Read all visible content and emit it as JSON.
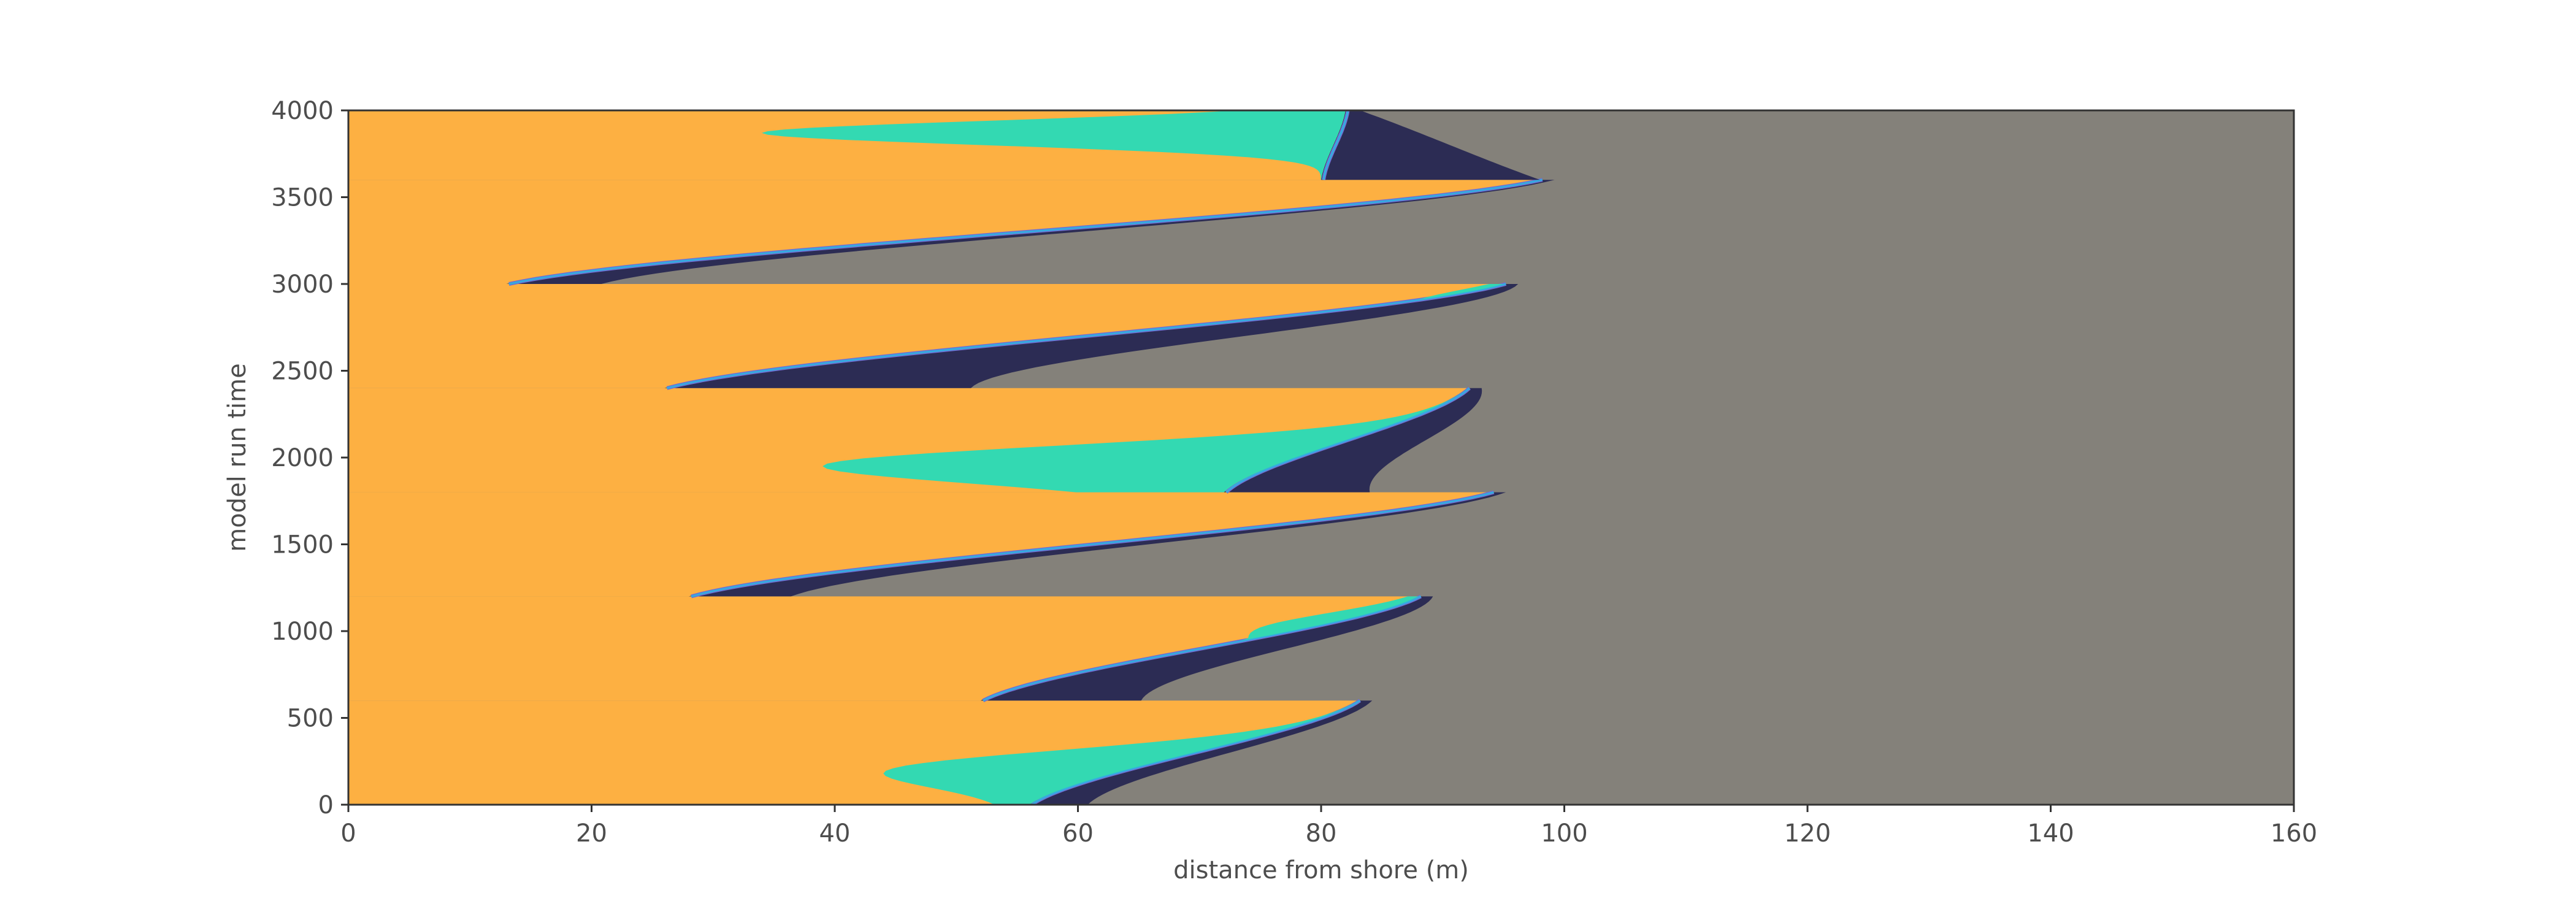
{
  "chart_data": {
    "type": "heatmap",
    "title": "",
    "xlabel": "distance from shore (m)",
    "ylabel": "model run time",
    "xlim": [
      0,
      160
    ],
    "ylim": [
      0,
      4000
    ],
    "xticks": [
      "0",
      "20",
      "40",
      "60",
      "80",
      "100",
      "120",
      "140",
      "160"
    ],
    "yticks": [
      "0",
      "500",
      "1000",
      "1500",
      "2000",
      "2500",
      "3000",
      "3500",
      "4000"
    ],
    "grid": false,
    "legend": "none",
    "colors": {
      "background": "#fdb042",
      "deep": "#84817a",
      "teal": "#33d9b2",
      "navy": "#2c2c54",
      "purple": "#706fd3",
      "blue": "#34ace0"
    },
    "cycles": [
      {
        "t0": 0,
        "t1": 600,
        "front_start": 56,
        "front_end": 83,
        "teal_from": 44,
        "teal_to": 54,
        "navy_from": 50,
        "navy_to": 56
      },
      {
        "t0": 600,
        "t1": 1200,
        "front_start": 52,
        "front_end": 88,
        "teal_from": 74,
        "teal_to": 86,
        "teal_bulge_time": 950,
        "navy_from": 52,
        "navy_to": 72
      },
      {
        "t0": 1200,
        "t1": 1800,
        "front_start": 28,
        "front_end": 94,
        "navy_from": 30,
        "navy_to": 42
      },
      {
        "t0": 1800,
        "t1": 2400,
        "front_start": 72,
        "front_end": 92,
        "teal_from": 39,
        "teal_to": 60,
        "teal_bulge_time": 1950,
        "navy_from": 54,
        "navy_to": 72
      },
      {
        "t0": 2400,
        "t1": 3000,
        "front_start": 26,
        "front_end": 95,
        "teal_from": 88,
        "teal_to": 94,
        "teal_bulge_time": 2800,
        "navy_from": 30,
        "navy_to": 70
      },
      {
        "t0": 3000,
        "t1": 3600,
        "front_start": 13,
        "front_end": 98,
        "navy_from": 19,
        "navy_to": 30
      },
      {
        "t0": 3600,
        "t1": 4000,
        "front_start": 80,
        "front_end": 82,
        "teal_from": 34,
        "teal_to": 80,
        "teal_bulge_time": 3870,
        "navy_from": 52,
        "navy_to": 80
      }
    ]
  }
}
